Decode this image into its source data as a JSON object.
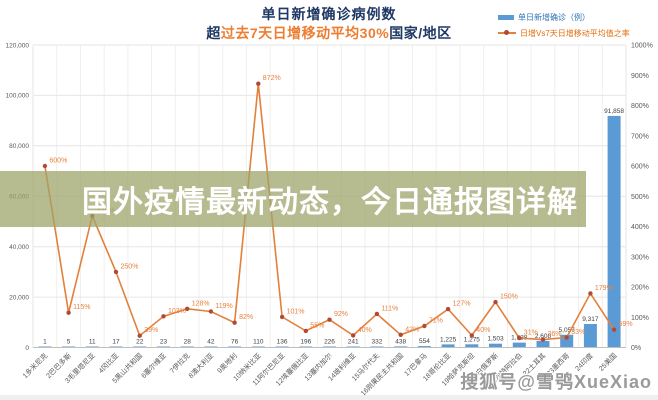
{
  "header": {
    "title": "单日新增确诊病例数",
    "subtitle_prefix": "超",
    "subtitle_highlight": "过去7天日增移动平均30%",
    "subtitle_suffix": "国家/地区"
  },
  "legend": {
    "items": [
      {
        "label": "单日新增确诊（例）",
        "swatch": "bar-swatch"
      },
      {
        "label": "日增Vs7天日增移动平均值之率",
        "swatch": "line-swatch"
      }
    ]
  },
  "overlays": {
    "banner_text": "国外疫情最新动态，今日通报图详解",
    "credit_text": "搜狐号@雪鸮XueXiao"
  },
  "colors": {
    "title_navy": "#1f3864",
    "highlight_orange": "#ed7d31",
    "bar_blue": "#5b9bd5",
    "line_orange": "#e2803c",
    "marker_red": "#b04a35",
    "label_orange": "#e8823d",
    "axis_text": "#595959",
    "bar_label_text": "#404040",
    "gridline": "#e6e6e6",
    "gridline_vertical": "#f1efeb",
    "axis_line": "#bfbfbf",
    "banner_olive": "#9ea369",
    "credit_gray": "#9a9a9a"
  },
  "chart_data": {
    "type": "bar",
    "subtype": "bar+line combo, dual axis",
    "title": "单日新增确诊病例数",
    "subtitle": "超过去7天日增移动平均30%国家/地区",
    "grid": "on",
    "legend_position": "top-right",
    "categories": [
      "1多米尼克",
      "2巴巴多斯",
      "3毛里塔尼亚",
      "4冈比亚",
      "5黑山共和国",
      "6塞尔维亚",
      "7伊拉克",
      "8澳大利亚",
      "9奥地利",
      "10纳米比亚",
      "11阿尔巴尼亚",
      "12埃塞俄比亚",
      "13塞内加尔",
      "14玻利维亚",
      "15马尔代夫",
      "16刚果民主共和国",
      "17巴拿马",
      "18哥伦比亚",
      "19哈萨克斯坦",
      "20白俄罗斯",
      "21沙特阿拉伯",
      "22土耳其",
      "23墨西哥",
      "24印度",
      "25美国"
    ],
    "series": [
      {
        "name": "单日新增确诊（例）",
        "type": "bar",
        "axis": "left",
        "values": [
          1,
          5,
          11,
          17,
          22,
          23,
          28,
          42,
          76,
          110,
          136,
          196,
          226,
          241,
          332,
          438,
          554,
          1225,
          1275,
          1503,
          1938,
          2608,
          5057,
          9317,
          91858
        ],
        "labels": [
          "1",
          "5",
          "11",
          "17",
          "22",
          "23",
          "28",
          "42",
          "76",
          "110",
          "136",
          "196",
          "226",
          "241",
          "332",
          "438",
          "554",
          "1,225",
          "1,275",
          "1,503",
          "1,938",
          "2,608",
          "5,057",
          "9,317",
          "91,858"
        ]
      },
      {
        "name": "日增Vs7天日增移动平均值之率",
        "type": "line",
        "axis": "right",
        "values_pct": [
          600,
          115,
          435,
          250,
          39,
          103,
          128,
          119,
          82,
          872,
          101,
          55,
          92,
          40,
          111,
          42,
          71,
          127,
          40,
          150,
          31,
          26,
          33,
          179,
          59
        ],
        "labels": [
          "600%",
          "115%",
          "435%",
          "250%",
          "39%",
          "103%",
          "128%",
          "119%",
          "82%",
          "872%",
          "101%",
          "55%",
          "92%",
          "40%",
          "111%",
          "42%",
          "71%",
          "127%",
          "40%",
          "150%",
          "31%",
          "26%",
          "33%",
          "179%",
          "59%"
        ]
      }
    ],
    "left_axis": {
      "min": 0,
      "max": 120000,
      "step": 20000,
      "tick_labels": [
        "120,000",
        "100,000",
        "80,000",
        "60,000",
        "40,000",
        "20,000",
        "0"
      ]
    },
    "right_axis": {
      "min": 0,
      "max": 1000,
      "step": 100,
      "tick_labels": [
        "1000%",
        "900%",
        "800%",
        "700%",
        "600%",
        "500%",
        "400%",
        "300%",
        "200%",
        "100%",
        "0%"
      ]
    }
  }
}
